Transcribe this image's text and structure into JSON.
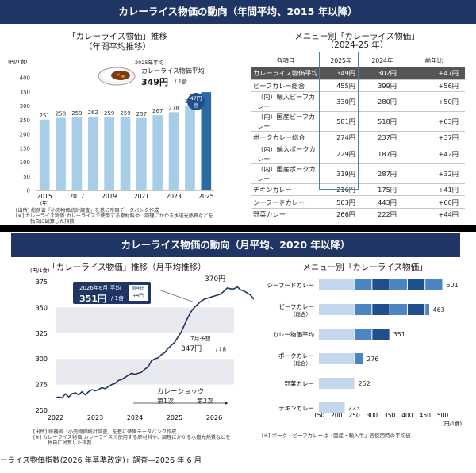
{
  "top": {
    "header": "カレーライス物価の動向（年間平均、2015 年以降）",
    "left_title": "「カレーライス物価」推移",
    "left_subtitle": "（年間平均推移）",
    "unit": "(円/1食)",
    "year_axis_suffix": "(年)",
    "callout_year": "2025年平均",
    "callout_label": "カレーライス物価平均",
    "callout_value": "349円",
    "callout_unit": "/ 1食",
    "badge_line1": "47円",
    "badge_line2": "高",
    "notes": [
      "[出所] 総務省「小売物価統計調査」を基に帝国データバンク作成",
      "[※] カレーライス物価:カレーライスで使用する原材料や、調理にかかる水道光熱費などを",
      "独自に試算した指数"
    ],
    "right_title": "メニュー別「カレーライス物価」",
    "right_subtitle": "（2024-25 年）",
    "table_headers": [
      "各項目",
      "2025年",
      "2024年",
      "前年比"
    ],
    "table_rows": [
      [
        "カレーライス物価平均",
        "349円",
        "302円",
        "+47円"
      ],
      [
        "ビーフカレー総合",
        "455円",
        "399円",
        "+56円"
      ],
      [
        "（内）輸入ビーフカレー",
        "330円",
        "280円",
        "+50円"
      ],
      [
        "（内）国産ビーフカレー",
        "581円",
        "518円",
        "+63円"
      ],
      [
        "ポークカレー総合",
        "274円",
        "237円",
        "+37円"
      ],
      [
        "（内）輸入ポークカレー",
        "229円",
        "187円",
        "+42円"
      ],
      [
        "（内）国産ポークカレー",
        "319円",
        "287円",
        "+32円"
      ],
      [
        "チキンカレー",
        "216円",
        "175円",
        "+41円"
      ],
      [
        "シーフードカレー",
        "503円",
        "443円",
        "+60円"
      ],
      [
        "野菜カレー",
        "266円",
        "222円",
        "+44円"
      ]
    ]
  },
  "bottom": {
    "header": "カレーライス物価の動向（月平均、2020 年以降）",
    "left_title": "「カレーライス物価」推移（月平均推移）",
    "unit": "(円/1食)",
    "callout_month": "2026年6月 平均",
    "callout_value": "351円",
    "callout_unit": "/ 1食",
    "callout_badge_line1": "前年比",
    "callout_badge_line2": "+4円",
    "peak_label": "370円",
    "forecast_month": "7月予想",
    "forecast_value": "347円",
    "forecast_unit": "/ 1食",
    "shock_label": "カレーショック",
    "shock_first": "第1次",
    "shock_second": "第2次",
    "notes": [
      "[出所] 総務省「小売物価統計調査」を基に帝国データバンク作成",
      "[※] カレーライス物価:カレーライスで使用する原材料や、調理にかかる水道光熱費などを",
      "独自に試算した指数"
    ],
    "right_title": "メニュー別「カレーライス物価」",
    "right_unit": "(円/1食)",
    "right_note": "[※] ポーク・ビーフカレーは「国産・輸入牛」各使用時の平均値",
    "footer": "ーライス物価指数(2026 年基準改定)」調査―2026 年 6 月"
  },
  "chart_data": [
    {
      "type": "bar",
      "categories": [
        "2015",
        "2016",
        "2017",
        "2018",
        "2019",
        "2020",
        "2021",
        "2022",
        "2023",
        "2024",
        "2025"
      ],
      "values": [
        251,
        258,
        259,
        262,
        259,
        259,
        257,
        267,
        278,
        302,
        349
      ],
      "ylabel": "(円/1食)",
      "ylim": [
        0,
        400
      ],
      "yticks": [
        0,
        50,
        100,
        150,
        200,
        250,
        300,
        350,
        400
      ],
      "xticks": [
        "2015",
        "2017",
        "2019",
        "2021",
        "2023",
        "2025"
      ],
      "colors": {
        "bar": "#a8cde6",
        "highlight": "#2b6aa2"
      }
    },
    {
      "type": "line",
      "ylabel": "(円/1食)",
      "ylim": [
        250,
        375
      ],
      "yticks": [
        250,
        275,
        300,
        325,
        350,
        375
      ],
      "xticks": [
        "2022",
        "2023",
        "2024",
        "2025",
        "2026"
      ],
      "x_start": "2022-01",
      "values": [
        262,
        263,
        262,
        266,
        263,
        266,
        267,
        265,
        268,
        265,
        268,
        270,
        269,
        270,
        272,
        271,
        273,
        275,
        276,
        279,
        280,
        282,
        284,
        286,
        285,
        286,
        287,
        290,
        292,
        298,
        300,
        301,
        304,
        306,
        310,
        313,
        316,
        321,
        326,
        333,
        340,
        346,
        350,
        353,
        356,
        358,
        359,
        360,
        361,
        362,
        363,
        366,
        369,
        368,
        368,
        370,
        367,
        366,
        364,
        362,
        358,
        355,
        351,
        347
      ],
      "colors": {
        "line": "#1f3563",
        "band": "#e9eaf0"
      }
    },
    {
      "type": "bar",
      "orientation": "horizontal",
      "categories": [
        "シーフードカレー",
        "ビーフカレー（総合）",
        "カレー物価平均",
        "ポークカレー（総合）",
        "野菜カレー",
        "チキンカレー"
      ],
      "values": [
        501,
        463,
        351,
        276,
        252,
        223
      ],
      "xlim": [
        150,
        500
      ],
      "xticks": [
        150,
        200,
        250,
        300,
        350,
        400,
        450,
        500
      ],
      "xlabel": "(円/1食)",
      "colors": {
        "base": "#c5d7ec",
        "mid": "#4d84c2",
        "dark": "#1f4f8f"
      }
    }
  ]
}
